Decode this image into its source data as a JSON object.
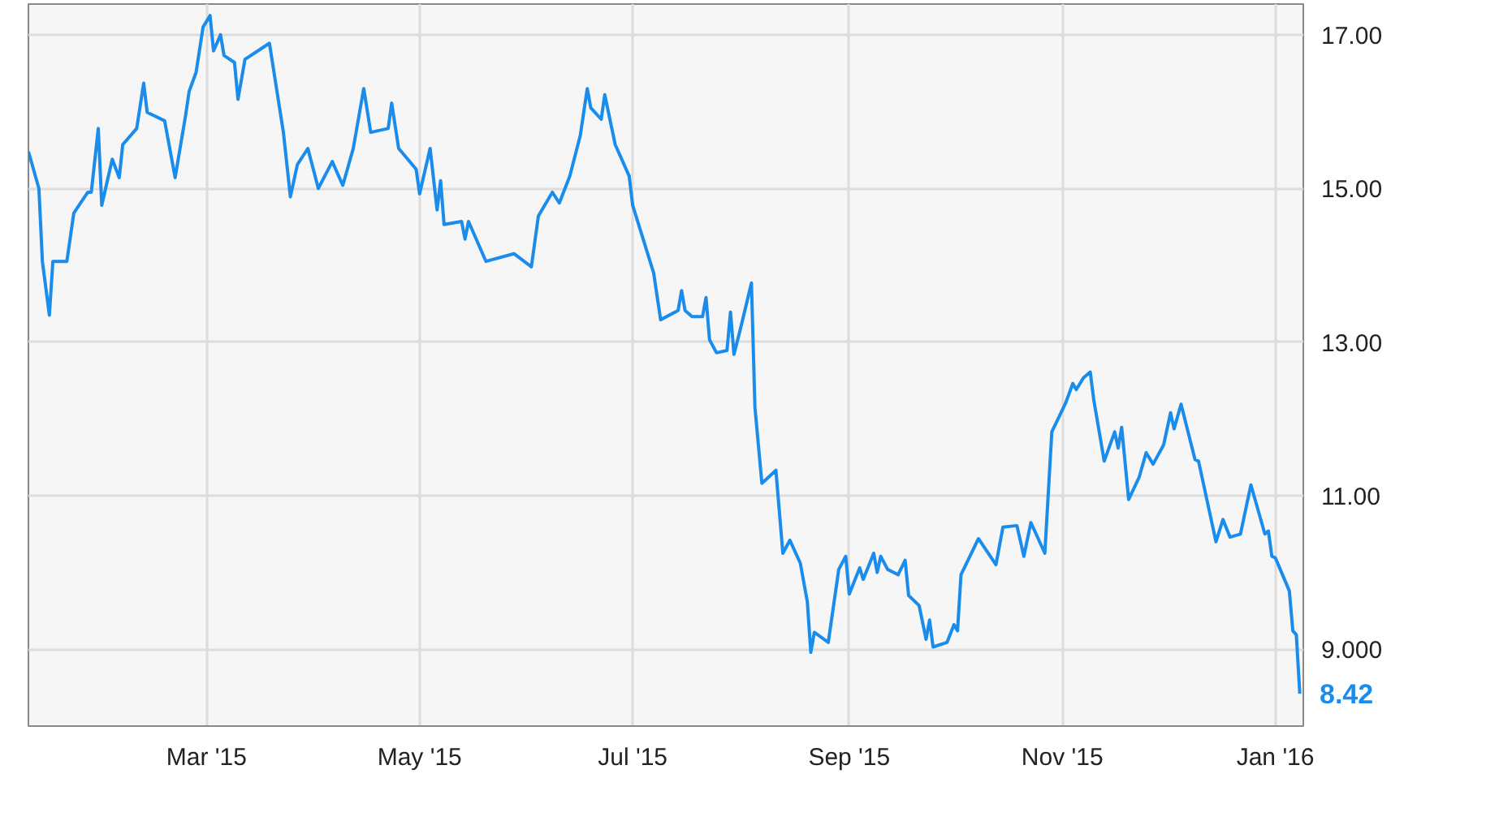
{
  "chart_data": {
    "type": "line",
    "xlim": [
      "2015-01-09",
      "2016-01-09"
    ],
    "ylim": [
      8.0,
      17.4
    ],
    "xticks": [
      {
        "value": "2015-03-01",
        "label": "Mar '15"
      },
      {
        "value": "2015-05-01",
        "label": "May '15"
      },
      {
        "value": "2015-07-01",
        "label": "Jul '15"
      },
      {
        "value": "2015-09-01",
        "label": "Sep '15"
      },
      {
        "value": "2015-11-01",
        "label": "Nov '15"
      },
      {
        "value": "2016-01-01",
        "label": "Jan '16"
      }
    ],
    "yticks": [
      {
        "value": 9,
        "label": "9.000"
      },
      {
        "value": 11,
        "label": "11.00"
      },
      {
        "value": 13,
        "label": "13.00"
      },
      {
        "value": 15,
        "label": "15.00"
      },
      {
        "value": 17,
        "label": "17.00"
      }
    ],
    "grid": true,
    "marker": "none",
    "line_style": "solid",
    "annotations": [
      {
        "text": "8.42",
        "x": "2016-01-08",
        "y": 8.42
      }
    ],
    "series": [
      {
        "color": "#1a8ceb",
        "x": [
          "2015-01-09",
          "2015-01-12",
          "2015-01-13",
          "2015-01-15",
          "2015-01-16",
          "2015-01-20",
          "2015-01-22",
          "2015-01-26",
          "2015-01-27",
          "2015-01-29",
          "2015-01-30",
          "2015-02-02",
          "2015-02-04",
          "2015-02-05",
          "2015-02-09",
          "2015-02-11",
          "2015-02-12",
          "2015-02-17",
          "2015-02-20",
          "2015-02-23",
          "2015-02-24",
          "2015-02-26",
          "2015-02-28",
          "2015-03-02",
          "2015-03-03",
          "2015-03-05",
          "2015-03-06",
          "2015-03-09",
          "2015-03-10",
          "2015-03-12",
          "2015-03-17",
          "2015-03-19",
          "2015-03-23",
          "2015-03-25",
          "2015-03-27",
          "2015-03-30",
          "2015-04-02",
          "2015-04-06",
          "2015-04-09",
          "2015-04-12",
          "2015-04-15",
          "2015-04-17",
          "2015-04-22",
          "2015-04-23",
          "2015-04-25",
          "2015-04-30",
          "2015-05-01",
          "2015-05-04",
          "2015-05-06",
          "2015-05-07",
          "2015-05-08",
          "2015-05-13",
          "2015-05-14",
          "2015-05-15",
          "2015-05-20",
          "2015-05-28",
          "2015-06-02",
          "2015-06-04",
          "2015-06-08",
          "2015-06-10",
          "2015-06-13",
          "2015-06-16",
          "2015-06-18",
          "2015-06-19",
          "2015-06-22",
          "2015-06-23",
          "2015-06-26",
          "2015-06-30",
          "2015-07-01",
          "2015-07-07",
          "2015-07-09",
          "2015-07-14",
          "2015-07-15",
          "2015-07-16",
          "2015-07-18",
          "2015-07-21",
          "2015-07-22",
          "2015-07-23",
          "2015-07-25",
          "2015-07-28",
          "2015-07-29",
          "2015-07-30",
          "2015-08-01",
          "2015-08-04",
          "2015-08-05",
          "2015-08-07",
          "2015-08-11",
          "2015-08-13",
          "2015-08-15",
          "2015-08-18",
          "2015-08-20",
          "2015-08-21",
          "2015-08-22",
          "2015-08-26",
          "2015-08-29",
          "2015-08-31",
          "2015-09-01",
          "2015-09-04",
          "2015-09-05",
          "2015-09-08",
          "2015-09-09",
          "2015-09-10",
          "2015-09-12",
          "2015-09-15",
          "2015-09-17",
          "2015-09-18",
          "2015-09-21",
          "2015-09-23",
          "2015-09-24",
          "2015-09-25",
          "2015-09-29",
          "2015-10-01",
          "2015-10-02",
          "2015-10-03",
          "2015-10-08",
          "2015-10-13",
          "2015-10-15",
          "2015-10-19",
          "2015-10-21",
          "2015-10-23",
          "2015-10-27",
          "2015-10-29",
          "2015-11-02",
          "2015-11-04",
          "2015-11-05",
          "2015-11-07",
          "2015-11-09",
          "2015-11-10",
          "2015-11-13",
          "2015-11-16",
          "2015-11-17",
          "2015-11-18",
          "2015-11-20",
          "2015-11-23",
          "2015-11-25",
          "2015-11-27",
          "2015-11-30",
          "2015-12-02",
          "2015-12-03",
          "2015-12-05",
          "2015-12-09",
          "2015-12-10",
          "2015-12-15",
          "2015-12-17",
          "2015-12-19",
          "2015-12-22",
          "2015-12-25",
          "2015-12-29",
          "2015-12-30",
          "2015-12-31",
          "2016-01-01",
          "2016-01-05",
          "2016-01-06",
          "2016-01-07",
          "2016-01-08"
        ],
        "values": [
          15.48,
          15.0,
          14.05,
          13.35,
          14.05,
          14.05,
          14.68,
          14.95,
          14.95,
          15.78,
          14.78,
          15.38,
          15.14,
          15.57,
          15.78,
          16.37,
          15.99,
          15.88,
          15.14,
          15.95,
          16.26,
          16.51,
          17.1,
          17.25,
          16.79,
          17.0,
          16.73,
          16.64,
          16.16,
          16.68,
          16.83,
          16.89,
          15.73,
          14.89,
          15.31,
          15.52,
          15.0,
          15.35,
          15.04,
          15.52,
          16.3,
          15.73,
          15.78,
          16.11,
          15.52,
          15.25,
          14.93,
          15.52,
          14.72,
          15.1,
          14.53,
          14.57,
          14.34,
          14.57,
          14.05,
          14.15,
          13.98,
          14.64,
          14.95,
          14.81,
          15.16,
          15.69,
          16.3,
          16.05,
          15.9,
          16.22,
          15.57,
          15.16,
          14.78,
          13.9,
          13.29,
          13.41,
          13.67,
          13.41,
          13.33,
          13.33,
          13.58,
          13.03,
          12.86,
          12.89,
          13.39,
          12.84,
          13.2,
          13.77,
          12.15,
          11.16,
          11.33,
          10.25,
          10.42,
          10.12,
          9.62,
          8.96,
          9.22,
          9.09,
          10.04,
          10.21,
          9.72,
          10.06,
          9.91,
          10.25,
          10.0,
          10.21,
          10.04,
          9.97,
          10.16,
          9.7,
          9.57,
          9.13,
          9.38,
          9.03,
          9.09,
          9.32,
          9.24,
          9.97,
          10.44,
          10.1,
          10.59,
          10.61,
          10.21,
          10.65,
          10.25,
          11.83,
          12.21,
          12.46,
          12.38,
          12.53,
          12.61,
          12.25,
          11.45,
          11.83,
          11.62,
          11.89,
          10.95,
          11.24,
          11.56,
          11.41,
          11.66,
          12.08,
          11.87,
          12.19,
          11.47,
          11.45,
          10.4,
          10.69,
          10.46,
          10.5,
          11.14,
          10.5,
          10.54,
          10.21,
          10.19,
          9.76,
          9.24,
          9.19,
          8.42
        ]
      }
    ]
  }
}
